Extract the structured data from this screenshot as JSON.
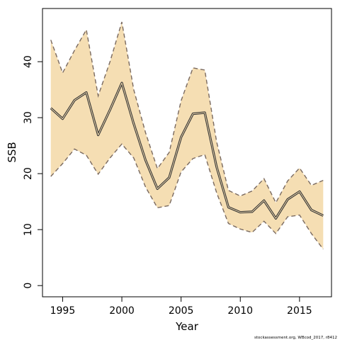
{
  "chart_data": {
    "type": "line",
    "xlabel": "Year",
    "ylabel": "SSB",
    "xlim": [
      1993.3,
      2017.7
    ],
    "ylim": [
      -2,
      49.5
    ],
    "x_ticks": [
      1995,
      2000,
      2005,
      2010,
      2015
    ],
    "y_ticks": [
      0,
      10,
      20,
      30,
      40
    ],
    "grid": false,
    "legend": "none",
    "colors": {
      "band_fill": "#f5deb3",
      "band_edge": "#7a6a60",
      "line": "#333333",
      "axis": "#000000"
    },
    "x": [
      1994,
      1995,
      1996,
      1997,
      1998,
      1999,
      2000,
      2001,
      2002,
      2003,
      2004,
      2005,
      2006,
      2007,
      2008,
      2009,
      2010,
      2011,
      2012,
      2013,
      2014,
      2015,
      2016,
      2017
    ],
    "series": [
      {
        "role": "estimate",
        "values": [
          31.7,
          29.8,
          33.1,
          34.5,
          26.9,
          31.4,
          36.2,
          28.9,
          22.4,
          17.3,
          19.3,
          26.5,
          30.7,
          30.9,
          21.2,
          14.0,
          13.1,
          13.2,
          15.2,
          12.0,
          15.4,
          16.8,
          13.5,
          12.5
        ]
      },
      {
        "role": "upper",
        "values": [
          43.9,
          38.0,
          42.0,
          45.7,
          33.9,
          40.0,
          47.1,
          35.0,
          27.3,
          20.9,
          23.8,
          33.0,
          38.9,
          38.5,
          25.7,
          17.0,
          16.0,
          16.9,
          19.1,
          14.8,
          18.7,
          21.0,
          17.9,
          18.8
        ]
      },
      {
        "role": "lower",
        "values": [
          19.5,
          21.8,
          24.4,
          23.3,
          19.9,
          22.8,
          25.3,
          22.8,
          17.6,
          13.9,
          14.3,
          20.3,
          22.7,
          23.4,
          16.6,
          11.1,
          10.1,
          9.5,
          11.5,
          9.3,
          12.3,
          12.6,
          9.3,
          6.5
        ]
      }
    ]
  },
  "credit": "stockassessment.org, WBcod_2017, r8412"
}
